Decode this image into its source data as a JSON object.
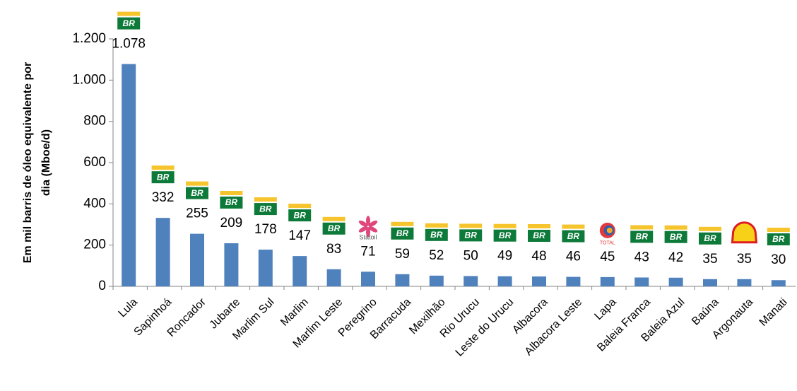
{
  "chart_data": {
    "type": "bar",
    "y_label": [
      "Em mil barris de óleo equivalente por",
      "dia (Mboe/d)"
    ],
    "categories": [
      "Lula",
      "Sapinhoá",
      "Roncador",
      "Jubarte",
      "Marlim Sul",
      "Marlim",
      "Marlim Leste",
      "Peregrino",
      "Barracuda",
      "Mexilhão",
      "Rio Urucu",
      "Leste do Urucu",
      "Albacora",
      "Albacora Leste",
      "Lapa",
      "Baleia Franca",
      "Baleia Azul",
      "Baúna",
      "Argonauta",
      "Manati"
    ],
    "values": [
      1078,
      332,
      255,
      209,
      178,
      147,
      83,
      71,
      59,
      52,
      50,
      49,
      48,
      46,
      45,
      43,
      42,
      35,
      35,
      30
    ],
    "value_labels": [
      "1.078",
      "332",
      "255",
      "209",
      "178",
      "147",
      "83",
      "71",
      "59",
      "52",
      "50",
      "49",
      "48",
      "46",
      "45",
      "43",
      "42",
      "35",
      "35",
      "30"
    ],
    "logo_labels": [
      "BR",
      "BR",
      "BR",
      "BR",
      "BR",
      "BR",
      "BR",
      "Statoil",
      "BR",
      "BR",
      "BR",
      "BR",
      "BR",
      "BR",
      "TOTAL",
      "BR",
      "BR",
      "BR",
      null,
      "BR"
    ],
    "color": "#4f81bd",
    "ylim": [
      0,
      1200
    ],
    "yticks": [
      0,
      200,
      400,
      600,
      800,
      {
        "value": 1000,
        "label": "1.000"
      },
      {
        "value": 1200,
        "label": "1.200"
      }
    ]
  }
}
